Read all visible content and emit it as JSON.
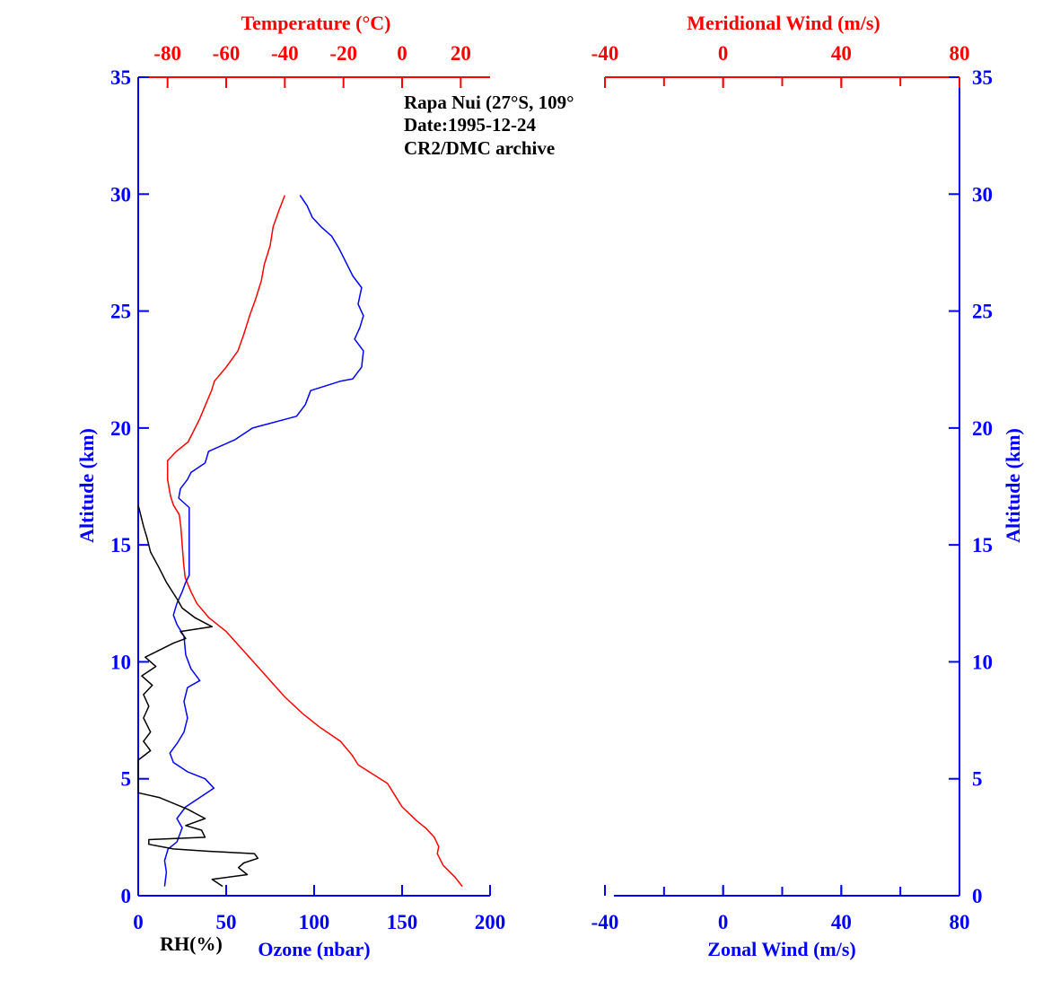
{
  "chart_data": [
    {
      "type": "line",
      "panel": "left",
      "annotation": [
        "Rapa Nui (27°S, 109°",
        "Date:1995-12-24",
        "CR2/DMC archive"
      ],
      "ylabel": "Altitude (km)",
      "ylim": [
        0,
        35
      ],
      "yticks": [
        "0",
        "5",
        "10",
        "15",
        "20",
        "25",
        "30",
        "35"
      ],
      "xlabel_top": "Temperature (°C)",
      "xlim_top": [
        -90,
        30
      ],
      "xticks_top": [
        "-80",
        "-60",
        "-40",
        "-20",
        "0",
        "20"
      ],
      "xlabel_bottom": "Ozone (nbar)",
      "xlabel_bottom_rh": "RH(%)",
      "xlim_bottom": [
        0,
        200
      ],
      "xticks_bottom": [
        "0",
        "50",
        "100",
        "150",
        "200"
      ],
      "colors": {
        "temperature": "#ff0000",
        "ozone": "#0000ff",
        "rh": "#000000",
        "axis": "#0000ff"
      },
      "series": [
        {
          "key": "temperature",
          "axis": "top",
          "points": [
            [
              20.5,
              0.4
            ],
            [
              18,
              0.8
            ],
            [
              14,
              1.3
            ],
            [
              12,
              1.8
            ],
            [
              12.5,
              2.1
            ],
            [
              11,
              2.5
            ],
            [
              8,
              2.9
            ],
            [
              5,
              3.2
            ],
            [
              0,
              3.8
            ],
            [
              -3,
              4.4
            ],
            [
              -5,
              4.8
            ],
            [
              -10,
              5.2
            ],
            [
              -15,
              5.6
            ],
            [
              -17,
              6.0
            ],
            [
              -21,
              6.6
            ],
            [
              -28,
              7.2
            ],
            [
              -34,
              7.8
            ],
            [
              -40,
              8.5
            ],
            [
              -45,
              9.2
            ],
            [
              -50,
              9.9
            ],
            [
              -55,
              10.6
            ],
            [
              -60,
              11.3
            ],
            [
              -66,
              11.9
            ],
            [
              -70,
              12.5
            ],
            [
              -72,
              13.0
            ],
            [
              -74,
              13.6
            ],
            [
              -74.5,
              14.2
            ],
            [
              -75,
              15.0
            ],
            [
              -75.5,
              15.8
            ],
            [
              -76,
              16.3
            ],
            [
              -78,
              16.7
            ],
            [
              -79,
              17.1
            ],
            [
              -80,
              17.8
            ],
            [
              -80,
              18.6
            ],
            [
              -77,
              19.0
            ],
            [
              -73,
              19.4
            ],
            [
              -71,
              19.9
            ],
            [
              -69,
              20.4
            ],
            [
              -67,
              21.0
            ],
            [
              -65,
              21.6
            ],
            [
              -64,
              22.0
            ],
            [
              -60,
              22.6
            ],
            [
              -56,
              23.3
            ],
            [
              -54,
              24.0
            ],
            [
              -52,
              24.8
            ],
            [
              -50,
              25.5
            ],
            [
              -48,
              26.3
            ],
            [
              -47,
              27.0
            ],
            [
              -45,
              27.8
            ],
            [
              -44,
              28.6
            ],
            [
              -42,
              29.3
            ],
            [
              -40,
              29.95
            ]
          ]
        },
        {
          "key": "ozone",
          "axis": "bottom",
          "points": [
            [
              15,
              0.4
            ],
            [
              16,
              1.0
            ],
            [
              15,
              1.5
            ],
            [
              17,
              2.0
            ],
            [
              22,
              2.3
            ],
            [
              25,
              2.9
            ],
            [
              22,
              3.3
            ],
            [
              27,
              3.8
            ],
            [
              35,
              4.2
            ],
            [
              43,
              4.6
            ],
            [
              38,
              5.0
            ],
            [
              28,
              5.3
            ],
            [
              20,
              5.7
            ],
            [
              18,
              6.1
            ],
            [
              22,
              6.5
            ],
            [
              26,
              7.0
            ],
            [
              28,
              7.6
            ],
            [
              26,
              8.3
            ],
            [
              28,
              8.9
            ],
            [
              35,
              9.2
            ],
            [
              30,
              9.7
            ],
            [
              27,
              10.3
            ],
            [
              26,
              11.1
            ],
            [
              22,
              11.6
            ],
            [
              20,
              12.0
            ],
            [
              22,
              12.5
            ],
            [
              25,
              13.0
            ],
            [
              27,
              13.4
            ],
            [
              29,
              13.7
            ],
            [
              29,
              14.2
            ],
            [
              29,
              15.0
            ],
            [
              29,
              15.9
            ],
            [
              29,
              16.6
            ],
            [
              23,
              17.0
            ],
            [
              24,
              17.4
            ],
            [
              28,
              17.8
            ],
            [
              30,
              18.1
            ],
            [
              38,
              18.5
            ],
            [
              40,
              19.0
            ],
            [
              55,
              19.5
            ],
            [
              65,
              20.0
            ],
            [
              90,
              20.5
            ],
            [
              95,
              21.0
            ],
            [
              98,
              21.6
            ],
            [
              115,
              22.0
            ],
            [
              122,
              22.1
            ],
            [
              127,
              22.6
            ],
            [
              128,
              23.3
            ],
            [
              123,
              23.8
            ],
            [
              126,
              24.3
            ],
            [
              128,
              24.8
            ],
            [
              125,
              25.3
            ],
            [
              127,
              26.0
            ],
            [
              122,
              26.5
            ],
            [
              118,
              27.1
            ],
            [
              114,
              27.7
            ],
            [
              110,
              28.2
            ],
            [
              104,
              28.6
            ],
            [
              99,
              29.0
            ],
            [
              96,
              29.5
            ],
            [
              92,
              29.95
            ]
          ]
        },
        {
          "key": "rh",
          "axis": "bottom",
          "points": [
            [
              48,
              0.4
            ],
            [
              42,
              0.7
            ],
            [
              62,
              0.9
            ],
            [
              57,
              1.2
            ],
            [
              60,
              1.4
            ],
            [
              68,
              1.6
            ],
            [
              66,
              1.8
            ],
            [
              40,
              1.9
            ],
            [
              20,
              2.0
            ],
            [
              6,
              2.2
            ],
            [
              6,
              2.4
            ],
            [
              38,
              2.5
            ],
            [
              36,
              2.8
            ],
            [
              27,
              3.0
            ],
            [
              38,
              3.3
            ],
            [
              28,
              3.7
            ],
            [
              12,
              4.2
            ],
            [
              0,
              4.4
            ],
            [
              0,
              5.8
            ],
            [
              7,
              6.2
            ],
            [
              3,
              6.6
            ],
            [
              7,
              7.0
            ],
            [
              3,
              7.6
            ],
            [
              6,
              8.1
            ],
            [
              3,
              8.6
            ],
            [
              8,
              9.0
            ],
            [
              2,
              9.4
            ],
            [
              10,
              9.8
            ],
            [
              4,
              10.2
            ],
            [
              12,
              10.5
            ],
            [
              20,
              10.8
            ],
            [
              27,
              11.0
            ],
            [
              24,
              11.3
            ],
            [
              42,
              11.5
            ],
            [
              32,
              11.9
            ],
            [
              25,
              12.3
            ],
            [
              22,
              12.7
            ],
            [
              16,
              13.4
            ],
            [
              12,
              14.0
            ],
            [
              7,
              14.7
            ],
            [
              5,
              15.3
            ],
            [
              3,
              15.8
            ],
            [
              1,
              16.4
            ],
            [
              0,
              16.7
            ]
          ]
        }
      ]
    },
    {
      "type": "line",
      "panel": "right",
      "ylabel": "Altitude (km)",
      "ylim": [
        0,
        35
      ],
      "yticks": [
        "0",
        "5",
        "10",
        "15",
        "20",
        "25",
        "30",
        "35"
      ],
      "xlabel_top": "Meridional Wind (m/s)",
      "xlim_top": [
        -40,
        80
      ],
      "xticks_top": [
        "-40",
        "0",
        "40",
        "80"
      ],
      "xlabel_bottom": "Zonal Wind (m/s)",
      "xlim_bottom": [
        -40,
        80
      ],
      "xticks_bottom": [
        "-40",
        "0",
        "40",
        "80"
      ],
      "colors": {
        "axis": "#0000ff",
        "top_axis": "#ff0000"
      },
      "series": []
    }
  ]
}
